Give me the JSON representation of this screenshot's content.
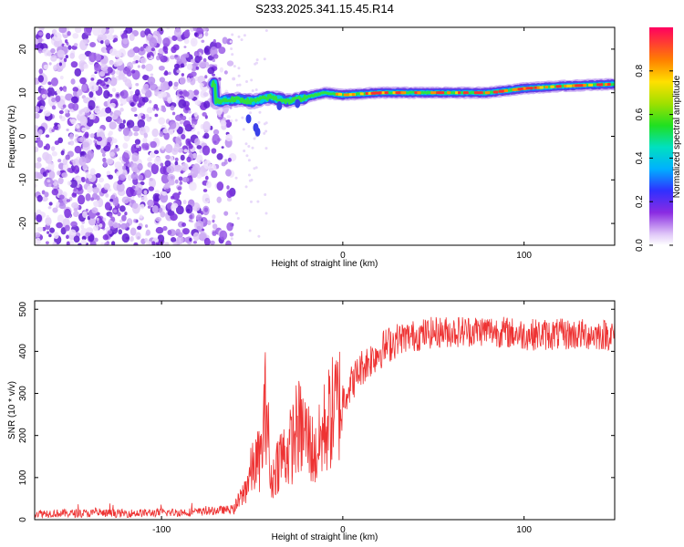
{
  "title": "S233.2025.341.15.45.R14",
  "chart_data": [
    {
      "type": "heatmap",
      "xlabel": "Height of straight line (km)",
      "ylabel": "Frequency (Hz)",
      "xlim": [
        -170,
        150
      ],
      "ylim": [
        -25,
        25
      ],
      "xticks": [
        -100,
        0,
        100
      ],
      "yticks": [
        -20,
        -10,
        0,
        10,
        20
      ],
      "colorbar": {
        "label": "Normalized spectral amplitude",
        "range": [
          0,
          1
        ],
        "ticks": [
          0.0,
          0.2,
          0.4,
          0.6,
          0.8
        ]
      },
      "ridge": {
        "description_points_x": [
          -70,
          -60,
          -50,
          -40,
          -30,
          -20,
          -10,
          0,
          20,
          40,
          60,
          80,
          100,
          120,
          150
        ],
        "description_points_y": [
          8,
          8.5,
          8,
          9,
          8,
          9,
          10,
          9.5,
          10,
          10,
          10,
          10,
          11,
          11.5,
          12
        ]
      }
    },
    {
      "type": "line",
      "xlabel": "Height of straight line (km)",
      "ylabel": "SNR (10 * v/v)",
      "xlim": [
        -170,
        150
      ],
      "ylim": [
        0,
        520
      ],
      "xticks": [
        -100,
        0,
        100
      ],
      "yticks": [
        0,
        100,
        200,
        300,
        400,
        500
      ],
      "color": "#ee3333",
      "profile": {
        "x": [
          -170,
          -120,
          -80,
          -60,
          -55,
          -50,
          -45,
          -42,
          -40,
          -35,
          -30,
          -25,
          -20,
          -15,
          -10,
          -5,
          0,
          10,
          20,
          30,
          50,
          80,
          100,
          120,
          150
        ],
        "y": [
          15,
          15,
          18,
          25,
          60,
          120,
          150,
          300,
          80,
          150,
          160,
          220,
          200,
          150,
          220,
          260,
          290,
          360,
          400,
          430,
          445,
          450,
          440,
          440,
          440
        ]
      }
    }
  ]
}
